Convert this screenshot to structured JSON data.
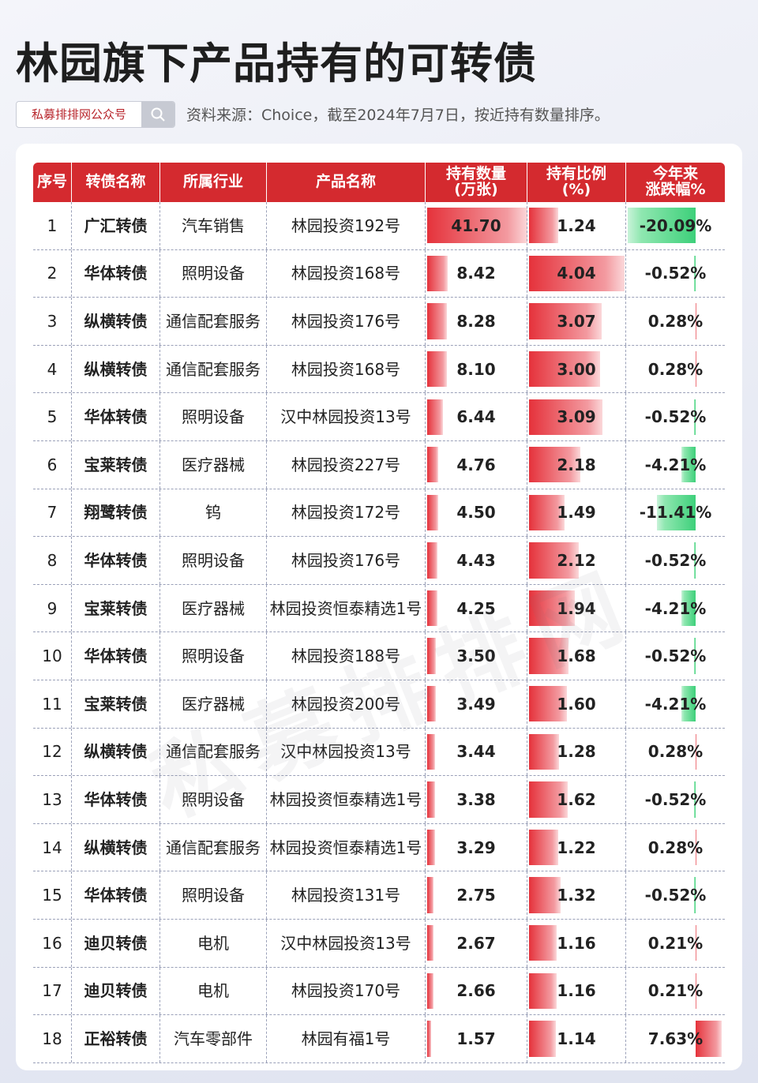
{
  "header": {
    "title": "林园旗下产品持有的可转债",
    "badge": "私募排排网公众号",
    "note": "资料来源：Choice，截至2024年7月7日，按近持有数量排序。"
  },
  "watermark": "私募排排网",
  "table": {
    "columns": [
      "序号",
      "转债名称",
      "所属行业",
      "产品名称",
      "持有数量\n(万张)",
      "持有比例\n(%)",
      "今年来\n涨跌幅%"
    ],
    "rows": [
      [
        "1",
        "广汇转债",
        "汽车销售",
        "林园投资192号",
        "41.70",
        "1.24",
        "-20.09%"
      ],
      [
        "2",
        "华体转债",
        "照明设备",
        "林园投资168号",
        "8.42",
        "4.04",
        "-0.52%"
      ],
      [
        "3",
        "纵横转债",
        "通信配套服务",
        "林园投资176号",
        "8.28",
        "3.07",
        "0.28%"
      ],
      [
        "4",
        "纵横转债",
        "通信配套服务",
        "林园投资168号",
        "8.10",
        "3.00",
        "0.28%"
      ],
      [
        "5",
        "华体转债",
        "照明设备",
        "汉中林园投资13号",
        "6.44",
        "3.09",
        "-0.52%"
      ],
      [
        "6",
        "宝莱转债",
        "医疗器械",
        "林园投资227号",
        "4.76",
        "2.18",
        "-4.21%"
      ],
      [
        "7",
        "翔鹭转债",
        "钨",
        "林园投资172号",
        "4.50",
        "1.49",
        "-11.41%"
      ],
      [
        "8",
        "华体转债",
        "照明设备",
        "林园投资176号",
        "4.43",
        "2.12",
        "-0.52%"
      ],
      [
        "9",
        "宝莱转债",
        "医疗器械",
        "林园投资恒泰精选1号",
        "4.25",
        "1.94",
        "-4.21%"
      ],
      [
        "10",
        "华体转债",
        "照明设备",
        "林园投资188号",
        "3.50",
        "1.68",
        "-0.52%"
      ],
      [
        "11",
        "宝莱转债",
        "医疗器械",
        "林园投资200号",
        "3.49",
        "1.60",
        "-4.21%"
      ],
      [
        "12",
        "纵横转债",
        "通信配套服务",
        "汉中林园投资13号",
        "3.44",
        "1.28",
        "0.28%"
      ],
      [
        "13",
        "华体转债",
        "照明设备",
        "林园投资恒泰精选1号",
        "3.38",
        "1.62",
        "-0.52%"
      ],
      [
        "14",
        "纵横转债",
        "通信配套服务",
        "林园投资恒泰精选1号",
        "3.29",
        "1.22",
        "0.28%"
      ],
      [
        "15",
        "华体转债",
        "照明设备",
        "林园投资131号",
        "2.75",
        "1.32",
        "-0.52%"
      ],
      [
        "16",
        "迪贝转债",
        "电机",
        "汉中林园投资13号",
        "2.67",
        "1.16",
        "0.21%"
      ],
      [
        "17",
        "迪贝转债",
        "电机",
        "林园投资170号",
        "2.66",
        "1.16",
        "0.21%"
      ],
      [
        "18",
        "正裕转债",
        "汽车零部件",
        "林园有福1号",
        "1.57",
        "1.14",
        "7.63%"
      ]
    ]
  }
}
